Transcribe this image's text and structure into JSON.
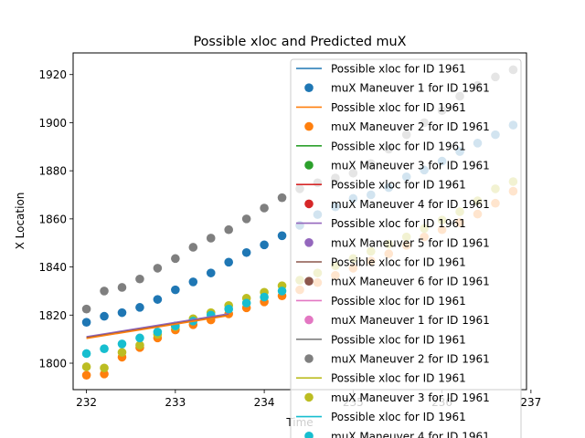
{
  "chart_data": {
    "type": "scatter",
    "title": "Possible xloc and Predicted muX",
    "xlabel": "Time",
    "ylabel": "X Location",
    "xlim": [
      231.85,
      236.95
    ],
    "ylim": [
      1789,
      1929
    ],
    "xticks": [
      "232",
      "233",
      "234",
      "235",
      "236",
      "237"
    ],
    "xtick_values": [
      232,
      233,
      234,
      235,
      236,
      237
    ],
    "yticks": [
      "1800",
      "1820",
      "1840",
      "1860",
      "1880",
      "1900",
      "1920"
    ],
    "ytick_values": [
      1800,
      1820,
      1840,
      1860,
      1880,
      1900,
      1920
    ],
    "legend_position": "top-right",
    "colors": [
      "#1f77b4",
      "#ff7f0e",
      "#2ca02c",
      "#d62728",
      "#9467bd",
      "#8c564b",
      "#e377c2",
      "#7f7f7f",
      "#bcbd22",
      "#17becf"
    ],
    "legend": [
      {
        "label": "Possible xloc for ID 1961",
        "kind": "line",
        "color": "#1f77b4"
      },
      {
        "label": "muX Maneuver 1 for ID 1961",
        "kind": "marker",
        "color": "#1f77b4"
      },
      {
        "label": "Possible xloc for ID 1961",
        "kind": "line",
        "color": "#ff7f0e"
      },
      {
        "label": "muX Maneuver 2 for ID 1961",
        "kind": "marker",
        "color": "#ff7f0e"
      },
      {
        "label": "Possible xloc for ID 1961",
        "kind": "line",
        "color": "#2ca02c"
      },
      {
        "label": "muX Maneuver 3 for ID 1961",
        "kind": "marker",
        "color": "#2ca02c"
      },
      {
        "label": "Possible xloc for ID 1961",
        "kind": "line",
        "color": "#d62728"
      },
      {
        "label": "muX Maneuver 4 for ID 1961",
        "kind": "marker",
        "color": "#d62728"
      },
      {
        "label": "Possible xloc for ID 1961",
        "kind": "line",
        "color": "#9467bd"
      },
      {
        "label": "muX Maneuver 5 for ID 1961",
        "kind": "marker",
        "color": "#9467bd"
      },
      {
        "label": "Possible xloc for ID 1961",
        "kind": "line",
        "color": "#8c564b"
      },
      {
        "label": "muX Maneuver 6 for ID 1961",
        "kind": "marker",
        "color": "#8c564b"
      },
      {
        "label": "Possible xloc for ID 1961",
        "kind": "line",
        "color": "#e377c2"
      },
      {
        "label": "muX Maneuver 1 for ID 1961",
        "kind": "marker",
        "color": "#e377c2"
      },
      {
        "label": "Possible xloc for ID 1961",
        "kind": "line",
        "color": "#7f7f7f"
      },
      {
        "label": "muX Maneuver 2 for ID 1961",
        "kind": "marker",
        "color": "#7f7f7f"
      },
      {
        "label": "Possible xloc for ID 1961",
        "kind": "line",
        "color": "#bcbd22"
      },
      {
        "label": "muX Maneuver 3 for ID 1961",
        "kind": "marker",
        "color": "#bcbd22"
      },
      {
        "label": "Possible xloc for ID 1961",
        "kind": "line",
        "color": "#17becf"
      },
      {
        "label": "muX Maneuver 4 for ID 1961",
        "kind": "marker",
        "color": "#17becf"
      }
    ],
    "lines": [
      {
        "color": "#9467bd",
        "x": [
          232.0,
          233.6
        ],
        "y": [
          1811.0,
          1820.5
        ]
      },
      {
        "color": "#8c564b",
        "x": [
          232.0,
          233.6
        ],
        "y": [
          1810.6,
          1820.0
        ]
      },
      {
        "color": "#ff7f0e",
        "x": [
          232.0,
          233.6
        ],
        "y": [
          1810.3,
          1819.8
        ]
      }
    ],
    "series": [
      {
        "color": "#1f77b4",
        "x": [
          232.0,
          232.2,
          232.4,
          232.6,
          232.8,
          233.0,
          233.2,
          233.4,
          233.6,
          233.8,
          234.0,
          234.2,
          234.4,
          234.6,
          234.8,
          235.0,
          235.2,
          235.4,
          235.6,
          235.8,
          236.0,
          236.2,
          236.4,
          236.6,
          236.8
        ],
        "y": [
          1817.0,
          1819.5,
          1821.0,
          1823.2,
          1826.5,
          1830.5,
          1833.8,
          1837.5,
          1842.0,
          1846.0,
          1849.2,
          1853.0,
          1857.3,
          1861.8,
          1865.0,
          1868.5,
          1870.0,
          1873.0,
          1877.5,
          1880.3,
          1884.0,
          1888.0,
          1891.5,
          1895.0,
          1899.0
        ]
      },
      {
        "color": "#7f7f7f",
        "x": [
          232.0,
          232.2,
          232.4,
          232.6,
          232.8,
          233.0,
          233.2,
          233.4,
          233.6,
          233.8,
          234.0,
          234.2,
          234.4,
          234.6,
          234.8,
          235.0,
          235.2,
          235.4,
          235.6,
          235.8,
          236.0,
          236.2,
          236.4,
          236.6,
          236.8
        ],
        "y": [
          1822.5,
          1830.0,
          1831.5,
          1835.0,
          1839.5,
          1843.5,
          1848.2,
          1852.0,
          1855.5,
          1860.0,
          1864.5,
          1868.8,
          1872.5,
          1875.0,
          1877.0,
          1879.0,
          1883.0,
          1889.0,
          1895.0,
          1900.0,
          1905.0,
          1911.0,
          1915.5,
          1919.0,
          1922.0
        ]
      },
      {
        "color": "#ff7f0e",
        "x": [
          232.0,
          232.2,
          232.4,
          232.6,
          232.8,
          233.0,
          233.2,
          233.4,
          233.6,
          233.8,
          234.0,
          234.2,
          234.4,
          234.6,
          234.8,
          235.0,
          235.2,
          235.4,
          235.6,
          235.8,
          236.0,
          236.2,
          236.4,
          236.6,
          236.8
        ],
        "y": [
          1795.0,
          1795.5,
          1802.5,
          1806.5,
          1810.5,
          1813.8,
          1816.0,
          1818.0,
          1820.5,
          1823.0,
          1825.5,
          1828.0,
          1830.5,
          1833.5,
          1836.5,
          1839.5,
          1842.5,
          1845.5,
          1849.0,
          1852.5,
          1855.5,
          1858.5,
          1862.0,
          1866.5,
          1871.5
        ]
      },
      {
        "color": "#bcbd22",
        "x": [
          232.0,
          232.2,
          232.4,
          232.6,
          232.8,
          233.0,
          233.2,
          233.4,
          233.6,
          233.8,
          234.0,
          234.2,
          234.4,
          234.6,
          234.8,
          235.0,
          235.2,
          235.4,
          235.6,
          235.8,
          236.0,
          236.2,
          236.4,
          236.6,
          236.8
        ],
        "y": [
          1798.5,
          1798.0,
          1804.5,
          1807.5,
          1812.0,
          1815.2,
          1818.5,
          1821.0,
          1824.0,
          1827.0,
          1829.5,
          1832.2,
          1834.5,
          1837.5,
          1840.5,
          1843.5,
          1846.5,
          1849.5,
          1852.5,
          1856.0,
          1859.5,
          1863.0,
          1867.5,
          1872.5,
          1875.5
        ]
      },
      {
        "color": "#17becf",
        "x": [
          232.0,
          232.2,
          232.4,
          232.6,
          232.8,
          233.0,
          233.2,
          233.4,
          233.6,
          233.8,
          234.0,
          234.2
        ],
        "y": [
          1804.0,
          1806.0,
          1808.0,
          1810.5,
          1813.0,
          1815.5,
          1817.5,
          1820.0,
          1822.5,
          1825.0,
          1827.5,
          1830.0
        ]
      }
    ]
  }
}
